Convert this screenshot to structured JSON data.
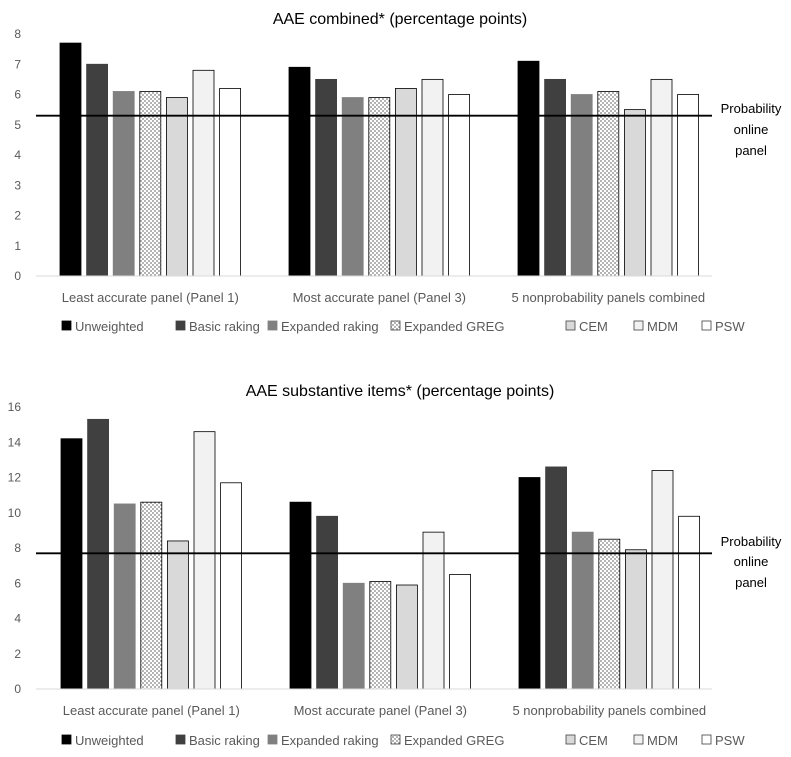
{
  "chart_data": [
    {
      "type": "bar",
      "title": "AAE combined* (percentage points)",
      "categories": [
        "Least accurate panel (Panel 1)",
        "Most accurate panel (Panel 3)",
        "5 nonprobability panels combined"
      ],
      "series": [
        {
          "name": "Unweighted",
          "color": "#000000",
          "pattern": "solid",
          "values": [
            7.7,
            6.9,
            7.1
          ]
        },
        {
          "name": "Basic raking",
          "color": "#404040",
          "pattern": "solid",
          "values": [
            7.0,
            6.5,
            6.5
          ]
        },
        {
          "name": "Expanded raking",
          "color": "#808080",
          "pattern": "solid",
          "values": [
            6.1,
            5.9,
            6.0
          ]
        },
        {
          "name": "Expanded GREG",
          "color": "#c8c8c8",
          "pattern": "dotted",
          "values": [
            6.1,
            5.9,
            6.1
          ]
        },
        {
          "name": "CEM",
          "color": "#d9d9d9",
          "pattern": "solid",
          "values": [
            5.9,
            6.2,
            5.5
          ]
        },
        {
          "name": "MDM",
          "color": "#f2f2f2",
          "pattern": "solid",
          "values": [
            6.8,
            6.5,
            6.5
          ]
        },
        {
          "name": "PSW",
          "color": "#ffffff",
          "pattern": "solid",
          "values": [
            6.2,
            6.0,
            6.0
          ]
        }
      ],
      "ylim": [
        0,
        8
      ],
      "yticks": [
        0,
        1,
        2,
        3,
        4,
        5,
        6,
        7,
        8
      ],
      "reference_line": {
        "value": 5.3,
        "label": [
          "Probability",
          "online",
          "panel"
        ]
      },
      "grid": false,
      "legend_position": "bottom"
    },
    {
      "type": "bar",
      "title": "AAE substantive items* (percentage points)",
      "categories": [
        "Least accurate panel (Panel 1)",
        "Most accurate panel (Panel 3)",
        "5 nonprobability panels combined"
      ],
      "series": [
        {
          "name": "Unweighted",
          "color": "#000000",
          "pattern": "solid",
          "values": [
            14.2,
            10.6,
            12.0
          ]
        },
        {
          "name": "Basic raking",
          "color": "#404040",
          "pattern": "solid",
          "values": [
            15.3,
            9.8,
            12.6
          ]
        },
        {
          "name": "Expanded raking",
          "color": "#808080",
          "pattern": "solid",
          "values": [
            10.5,
            6.0,
            8.9
          ]
        },
        {
          "name": "Expanded GREG",
          "color": "#c8c8c8",
          "pattern": "dotted",
          "values": [
            10.6,
            6.1,
            8.5
          ]
        },
        {
          "name": "CEM",
          "color": "#d9d9d9",
          "pattern": "solid",
          "values": [
            8.4,
            5.9,
            7.9
          ]
        },
        {
          "name": "MDM",
          "color": "#f2f2f2",
          "pattern": "solid",
          "values": [
            14.6,
            8.9,
            12.4
          ]
        },
        {
          "name": "PSW",
          "color": "#ffffff",
          "pattern": "solid",
          "values": [
            11.7,
            6.5,
            9.8
          ]
        }
      ],
      "ylim": [
        0,
        16
      ],
      "yticks": [
        0,
        2,
        4,
        6,
        8,
        10,
        12,
        14,
        16
      ],
      "reference_line": {
        "value": 7.7,
        "label": [
          "Probability",
          "online",
          "panel"
        ]
      },
      "grid": false,
      "legend_position": "bottom"
    }
  ]
}
